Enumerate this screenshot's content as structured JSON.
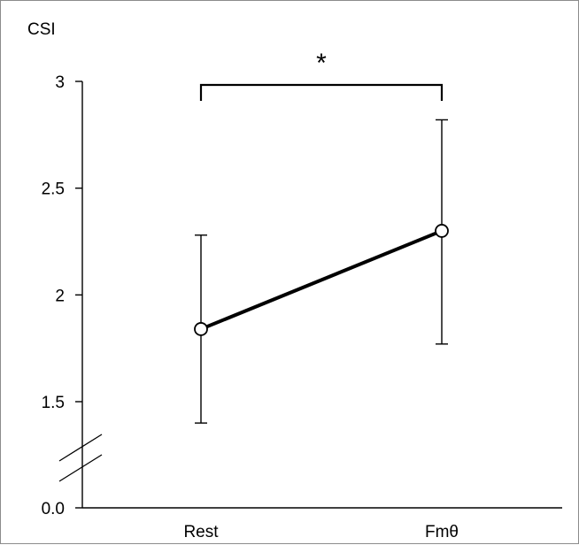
{
  "chart_data": {
    "type": "line",
    "ylabel": "CSI",
    "categories": [
      "Rest",
      "Fmθ"
    ],
    "series": [
      {
        "values": [
          1.84,
          2.3
        ],
        "error_upper": [
          2.28,
          2.82
        ],
        "error_lower": [
          1.4,
          1.77
        ]
      }
    ],
    "y_ticks": [
      {
        "value": 3,
        "label": "3"
      },
      {
        "value": 2.5,
        "label": "2.5"
      },
      {
        "value": 2,
        "label": "2"
      },
      {
        "value": 1.5,
        "label": "1.5"
      },
      {
        "value": 0.0,
        "label": "0.0"
      }
    ],
    "ylim": [
      0.0,
      3
    ],
    "axis_break": true,
    "significance": {
      "label": "*",
      "between": [
        "Rest",
        "Fmθ"
      ]
    },
    "grid": false,
    "colors": {
      "line": "#000000",
      "marker_fill": "#ffffff",
      "text": "#000000"
    }
  }
}
